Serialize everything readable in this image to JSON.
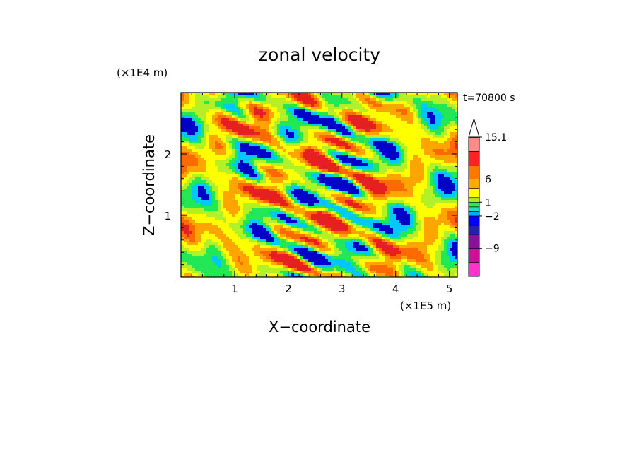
{
  "chart_data": {
    "type": "heatmap",
    "title": "zonal velocity",
    "xlabel": "X−coordinate",
    "ylabel": "Z−coordinate",
    "x_unit": "(×1E5 m)",
    "y_unit": "(×1E4 m)",
    "time_label": "t=70800 s",
    "x_ticks": [
      "1",
      "2",
      "3",
      "4",
      "5"
    ],
    "x_tick_values": [
      1,
      2,
      3,
      4,
      5
    ],
    "y_ticks": [
      "1",
      "2"
    ],
    "y_tick_values": [
      1,
      2
    ],
    "xlim": [
      0,
      5.15
    ],
    "ylim": [
      0,
      3.0
    ],
    "colorbar": {
      "labels": [
        "15.1",
        "6",
        "1",
        "−2",
        "−9"
      ],
      "label_values": [
        15.1,
        6,
        1,
        -2,
        -9
      ],
      "levels": [
        -15,
        -12,
        -9,
        -6,
        -4,
        -2,
        -1,
        0,
        1,
        2,
        4,
        6,
        9,
        12,
        15.1
      ],
      "colors": [
        "#ff33cc",
        "#cc1199",
        "#881199",
        "#2222aa",
        "#0000ff",
        "#00aaff",
        "#22ddbb",
        "#22ee55",
        "#aaee22",
        "#ffff00",
        "#ffaa00",
        "#ff7700",
        "#ff2222",
        "#ff8888",
        "#ffbbbb"
      ],
      "extend_max": true
    },
    "field_colors": [
      "#0000c8",
      "#00c8ff",
      "#22e855",
      "#b4f028",
      "#ffff00",
      "#ffa500",
      "#ff6a00",
      "#e62020"
    ]
  }
}
